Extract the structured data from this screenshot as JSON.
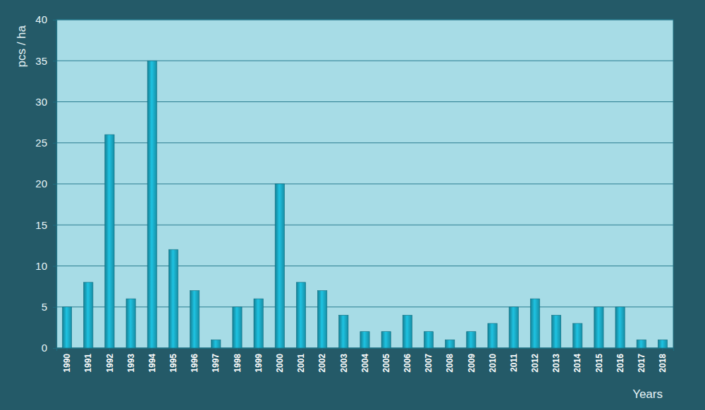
{
  "chart_data": {
    "type": "bar",
    "y_label": "pcs / ha",
    "x_label": "Years",
    "categories": [
      "1990",
      "1991",
      "1992",
      "1993",
      "1994",
      "1995",
      "1996",
      "1997",
      "1998",
      "1999",
      "2000",
      "2001",
      "2002",
      "2003",
      "2004",
      "2005",
      "2006",
      "2007",
      "2008",
      "2009",
      "2010",
      "2011",
      "2012",
      "2013",
      "2014",
      "2015",
      "2016",
      "2017",
      "2018"
    ],
    "values": [
      5,
      8,
      26,
      6,
      35,
      12,
      7,
      1,
      5,
      6,
      20,
      8,
      7,
      4,
      2,
      2,
      4,
      2,
      1,
      2,
      3,
      5,
      6,
      4,
      3,
      5,
      5,
      1,
      1
    ],
    "color": "#1aa9c4",
    "ylim": [
      0,
      40
    ],
    "yticks": [
      0,
      5,
      10,
      15,
      20,
      25,
      30,
      35,
      40
    ],
    "grid": true
  }
}
